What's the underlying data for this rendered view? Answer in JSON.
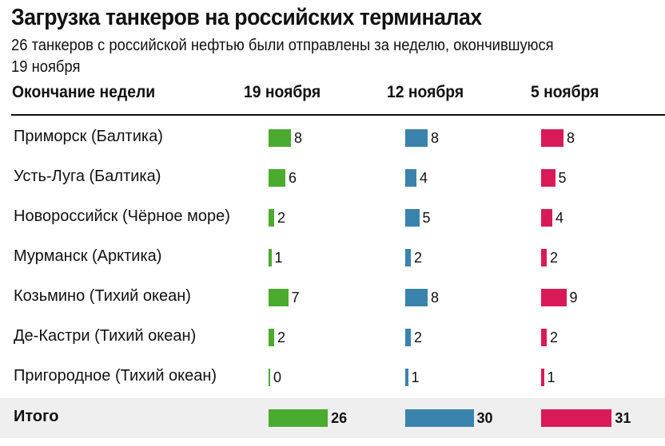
{
  "chart_data": {
    "type": "bar",
    "title": "Загрузка танкеров на российских терминалах",
    "subtitle": "26 танкеров с российской нефтью были отправлены за неделю, окончившуюся 19 ноября",
    "row_header": "Окончание недели",
    "columns": [
      "19 ноября",
      "12 ноября",
      "5 ноября"
    ],
    "colors": [
      "#4aab2e",
      "#3a83ad",
      "#d91a56"
    ],
    "rows": [
      {
        "label": "Приморск (Балтика)",
        "values": [
          8,
          8,
          8
        ]
      },
      {
        "label": "Усть-Луга (Балтика)",
        "values": [
          6,
          4,
          5
        ]
      },
      {
        "label": "Новороссийск (Чёрное море)",
        "values": [
          2,
          5,
          4
        ]
      },
      {
        "label": "Мурманск (Арктика)",
        "values": [
          1,
          2,
          2
        ]
      },
      {
        "label": "Козьмино (Тихий океан)",
        "values": [
          7,
          8,
          9
        ]
      },
      {
        "label": "Де-Кастри (Тихий океан)",
        "values": [
          2,
          2,
          2
        ]
      },
      {
        "label": "Пригородное (Тихий океан)",
        "values": [
          0,
          1,
          1
        ]
      }
    ],
    "total": {
      "label": "Итого",
      "values": [
        26,
        30,
        31
      ]
    }
  }
}
